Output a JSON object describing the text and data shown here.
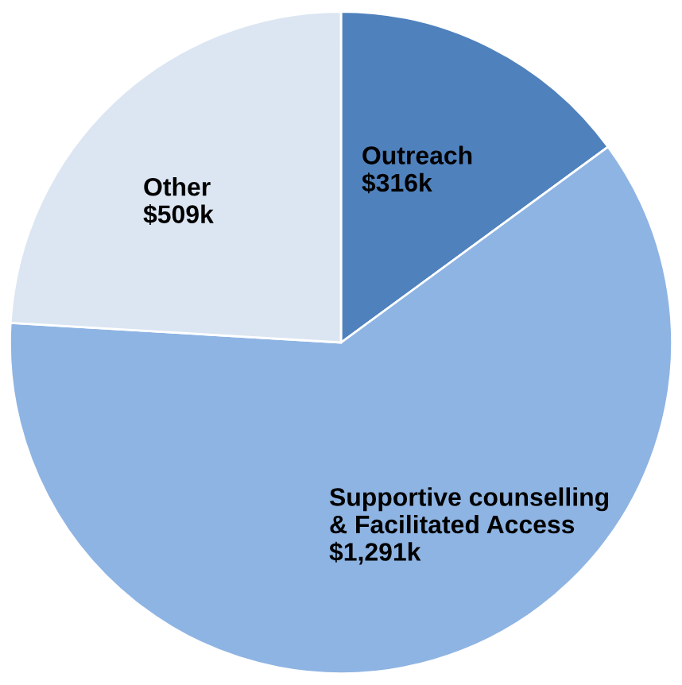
{
  "chart_data": {
    "type": "pie",
    "categories": [
      "Outreach",
      "Supportive counselling\n& Facilitated Access",
      "Other"
    ],
    "values": [
      316,
      1291,
      509
    ],
    "value_labels": [
      "$316k",
      "$1,291k",
      "$509k"
    ],
    "colors": [
      "#4f81bd",
      "#8eb4e3",
      "#dce6f2"
    ]
  }
}
